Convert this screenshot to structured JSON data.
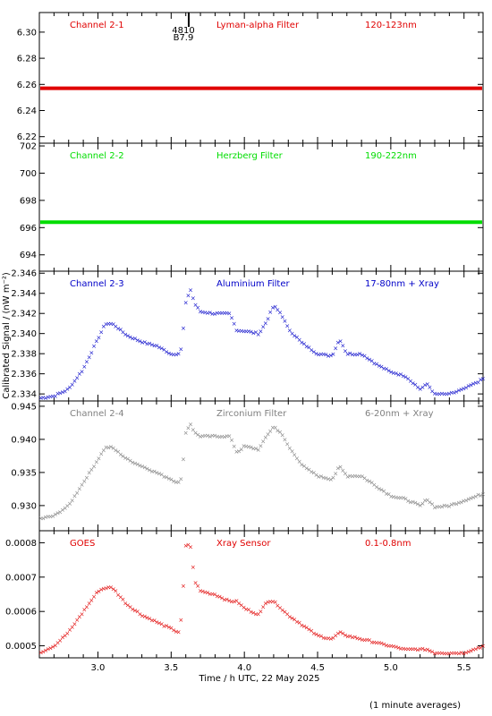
{
  "chart_data": {
    "type": "scatter",
    "xlabel": "Time / h UTC, 22 May 2025",
    "ylabel": "Calibrated Signal / (nW m⁻²)",
    "footnote": "(1 minute averages)",
    "xlim": [
      2.6,
      5.63
    ],
    "xticks": [
      "3.0",
      "3.5",
      "4.0",
      "4.5",
      "5.0",
      "5.5"
    ],
    "marker": {
      "x": 3.62,
      "labels": [
        "4810",
        "B7.9"
      ]
    },
    "panels": [
      {
        "channel": "Channel 2-1",
        "filter": "Lyman-alpha Filter",
        "band": "120-123nm",
        "color": "#e00000",
        "ylim": [
          6.215,
          6.315
        ],
        "yticks": [
          "6.22",
          "6.24",
          "6.26",
          "6.28",
          "6.30"
        ],
        "series": {
          "x": [
            2.6,
            5.63
          ],
          "y": [
            6.257,
            6.257
          ]
        }
      },
      {
        "channel": "Channel 2-2",
        "filter": "Herzberg Filter",
        "band": "190-222nm",
        "color": "#00dd00",
        "ylim": [
          692.8,
          702.2
        ],
        "yticks": [
          "694",
          "696",
          "698",
          "700",
          "702"
        ],
        "series": {
          "x": [
            2.6,
            5.63
          ],
          "y": [
            696.4,
            696.4
          ]
        }
      },
      {
        "channel": "Channel 2-3",
        "filter": "Aluminium Filter",
        "band": "17-80nm + Xray",
        "color": "#0000c8",
        "ylim": [
          2.3333,
          2.3462
        ],
        "yticks": [
          "2.334",
          "2.336",
          "2.338",
          "2.340",
          "2.342",
          "2.344",
          "2.346"
        ],
        "series": {
          "x": [
            2.6,
            2.7,
            2.8,
            2.9,
            3.0,
            3.05,
            3.1,
            3.2,
            3.3,
            3.4,
            3.5,
            3.55,
            3.57,
            3.6,
            3.63,
            3.66,
            3.7,
            3.8,
            3.9,
            3.95,
            4.0,
            4.1,
            4.15,
            4.2,
            4.25,
            4.3,
            4.4,
            4.5,
            4.6,
            4.65,
            4.7,
            4.8,
            4.9,
            5.0,
            5.1,
            5.2,
            5.25,
            5.3,
            5.4,
            5.5,
            5.63
          ],
          "y": [
            2.3336,
            2.3338,
            2.3345,
            2.3365,
            2.3395,
            2.341,
            2.341,
            2.3398,
            2.3392,
            2.3388,
            2.338,
            2.338,
            2.3385,
            2.343,
            2.3445,
            2.343,
            2.3422,
            2.342,
            2.342,
            2.3403,
            2.3403,
            2.34,
            2.3412,
            2.3428,
            2.342,
            2.3405,
            2.339,
            2.338,
            2.3378,
            2.3395,
            2.338,
            2.338,
            2.337,
            2.3362,
            2.3358,
            2.3345,
            2.335,
            2.334,
            2.334,
            2.3345,
            2.3355
          ]
        }
      },
      {
        "channel": "Channel 2-4",
        "filter": "Zirconium Filter",
        "band": "6-20nm + Xray",
        "color": "#808080",
        "ylim": [
          0.9262,
          0.9458
        ],
        "yticks": [
          "0.930",
          "0.935",
          "0.940",
          "0.945"
        ],
        "series": {
          "x": [
            2.6,
            2.7,
            2.8,
            2.9,
            3.0,
            3.05,
            3.1,
            3.2,
            3.3,
            3.4,
            3.5,
            3.55,
            3.57,
            3.6,
            3.63,
            3.66,
            3.7,
            3.8,
            3.9,
            3.95,
            4.0,
            4.1,
            4.15,
            4.2,
            4.25,
            4.3,
            4.4,
            4.5,
            4.6,
            4.65,
            4.7,
            4.8,
            4.9,
            5.0,
            5.1,
            5.2,
            5.25,
            5.3,
            5.4,
            5.5,
            5.63
          ],
          "y": [
            0.928,
            0.9285,
            0.93,
            0.9335,
            0.937,
            0.9388,
            0.9388,
            0.937,
            0.936,
            0.935,
            0.934,
            0.9335,
            0.934,
            0.941,
            0.9425,
            0.941,
            0.9405,
            0.9405,
            0.9405,
            0.938,
            0.939,
            0.9385,
            0.9405,
            0.942,
            0.941,
            0.939,
            0.936,
            0.9345,
            0.934,
            0.936,
            0.9345,
            0.9345,
            0.933,
            0.9315,
            0.931,
            0.93,
            0.931,
            0.9298,
            0.93,
            0.9308,
            0.9318
          ]
        }
      },
      {
        "channel": "GOES",
        "filter": "Xray Sensor",
        "band": "0.1-0.8nm",
        "color": "#e00000",
        "ylim": [
          0.000465,
          0.000835
        ],
        "yticks": [
          "0.0005",
          "0.0006",
          "0.0007",
          "0.0008"
        ],
        "series": {
          "x": [
            2.6,
            2.7,
            2.8,
            2.9,
            3.0,
            3.05,
            3.1,
            3.2,
            3.3,
            3.4,
            3.5,
            3.55,
            3.57,
            3.6,
            3.63,
            3.66,
            3.7,
            3.8,
            3.9,
            3.95,
            4.0,
            4.1,
            4.15,
            4.2,
            4.25,
            4.3,
            4.4,
            4.5,
            4.6,
            4.65,
            4.7,
            4.8,
            4.9,
            5.0,
            5.1,
            5.2,
            5.25,
            5.3,
            5.4,
            5.5,
            5.63
          ],
          "y": [
            0.00048,
            0.0005,
            0.00054,
            0.0006,
            0.00066,
            0.00067,
            0.00067,
            0.00062,
            0.00059,
            0.00057,
            0.00055,
            0.00054,
            0.00058,
            0.00079,
            0.0008,
            0.00069,
            0.00066,
            0.00065,
            0.00063,
            0.00063,
            0.00061,
            0.00059,
            0.00063,
            0.00063,
            0.00061,
            0.00059,
            0.00056,
            0.00053,
            0.00052,
            0.00054,
            0.00053,
            0.00052,
            0.00051,
            0.0005,
            0.00049,
            0.00049,
            0.00049,
            0.00048,
            0.00048,
            0.00048,
            0.0005
          ]
        }
      }
    ]
  }
}
